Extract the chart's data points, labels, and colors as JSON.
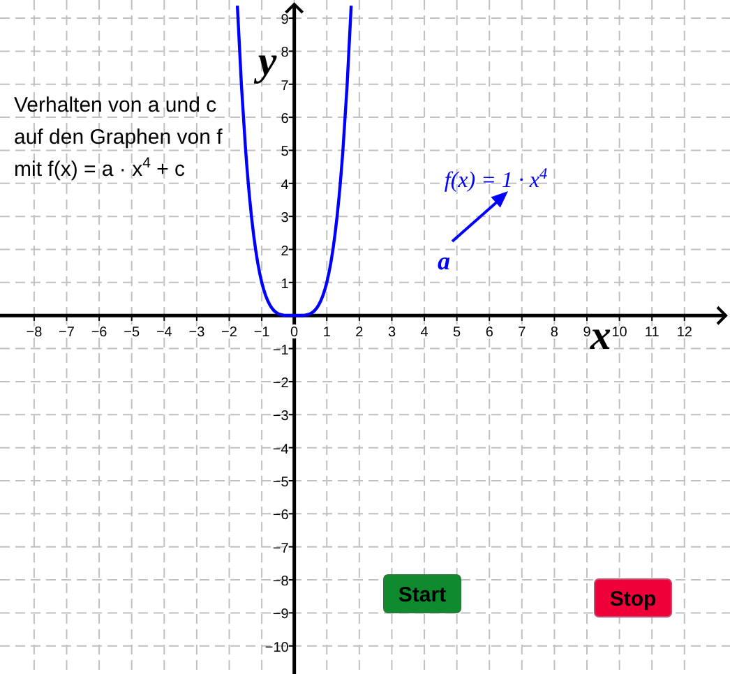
{
  "chart_data": {
    "type": "line",
    "xlabel": "x",
    "ylabel": "y",
    "xlim": [
      -9.05,
      13.4
    ],
    "ylim": [
      -10.85,
      9.55
    ],
    "xticks": [
      -8,
      -7,
      -6,
      -5,
      -4,
      -3,
      -2,
      -1,
      0,
      1,
      2,
      3,
      4,
      5,
      6,
      7,
      8,
      9,
      10,
      11,
      12
    ],
    "yticks": [
      -10,
      -9,
      -8,
      -7,
      -6,
      -5,
      -4,
      -3,
      -2,
      -1,
      1,
      2,
      3,
      4,
      5,
      6,
      7,
      8,
      9
    ],
    "grid": true,
    "line_style": "solid",
    "marker": "none",
    "x": [
      -1.75,
      -1.625,
      -1.5,
      -1.375,
      -1.25,
      -1.125,
      -1,
      -0.875,
      -0.75,
      -0.625,
      -0.5,
      -0.375,
      -0.25,
      -0.125,
      0,
      0.125,
      0.25,
      0.375,
      0.5,
      0.625,
      0.75,
      0.875,
      1,
      1.125,
      1.25,
      1.375,
      1.5,
      1.625,
      1.75
    ],
    "series": [
      {
        "color": "#0000ff",
        "values": [
          9.38,
          6.97,
          5.06,
          3.57,
          2.44,
          1.6,
          1,
          0.59,
          0.32,
          0.15,
          0.06,
          0.02,
          0,
          0,
          0,
          0,
          0,
          0.02,
          0.06,
          0.15,
          0.32,
          0.59,
          1,
          1.6,
          2.44,
          3.57,
          5.06,
          6.97,
          9.38
        ]
      }
    ],
    "annotations": [
      "Verhalten von a und c",
      "auf den Graphen von f",
      "mit f(x) = a · x$^{4}$ + c",
      "f(x) = 1 · x$^{4}$",
      "a",
      "Start",
      "Stop"
    ]
  }
}
